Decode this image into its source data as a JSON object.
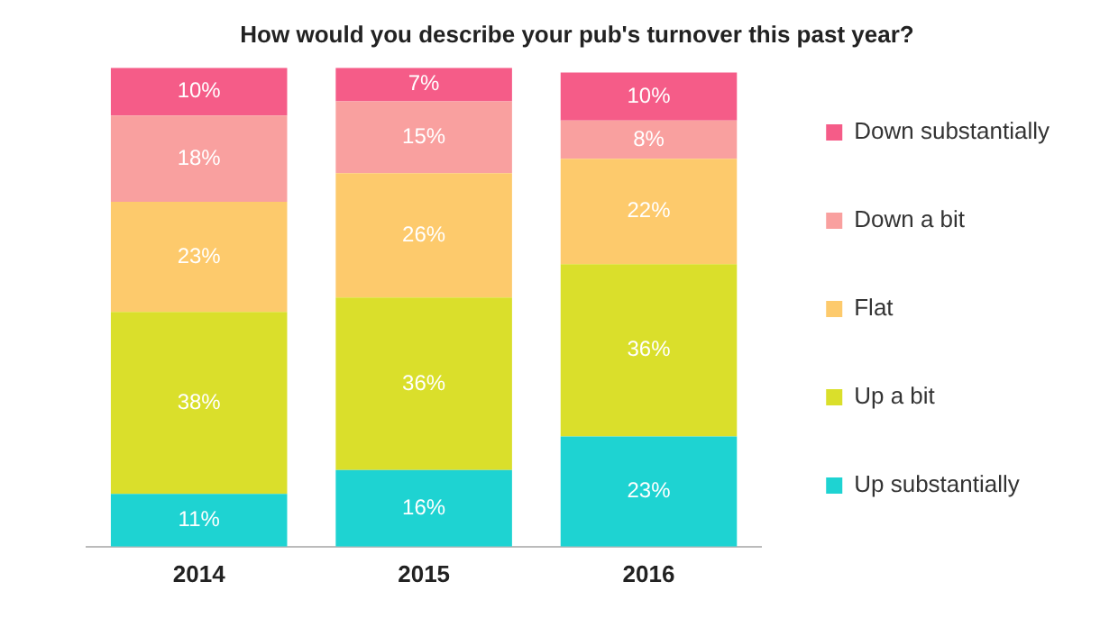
{
  "chart_data": {
    "type": "bar",
    "title": "How would you describe your pub's turnover this past year?",
    "categories": [
      "2014",
      "2015",
      "2016"
    ],
    "stacked": true,
    "legend": "right",
    "grid": false,
    "series": [
      {
        "name": "Up substantially",
        "color": "#1ed3d2",
        "values": [
          11,
          16,
          23
        ],
        "value_labels": [
          "11%",
          "16%",
          "23%"
        ]
      },
      {
        "name": "Up a bit",
        "color": "#dadf2b",
        "values": [
          38,
          36,
          36
        ],
        "value_labels": [
          "38%",
          "36%",
          "36%"
        ]
      },
      {
        "name": "Flat",
        "color": "#fdca6c",
        "values": [
          23,
          26,
          22
        ],
        "value_labels": [
          "23%",
          "26%",
          "22%"
        ]
      },
      {
        "name": "Down a bit",
        "color": "#f9a09f",
        "values": [
          18,
          15,
          8
        ],
        "value_labels": [
          "18%",
          "15%",
          "8%"
        ]
      },
      {
        "name": "Down substantially",
        "color": "#f55c88",
        "values": [
          10,
          7,
          10
        ],
        "value_labels": [
          "10%",
          "7%",
          "10%"
        ]
      }
    ]
  }
}
